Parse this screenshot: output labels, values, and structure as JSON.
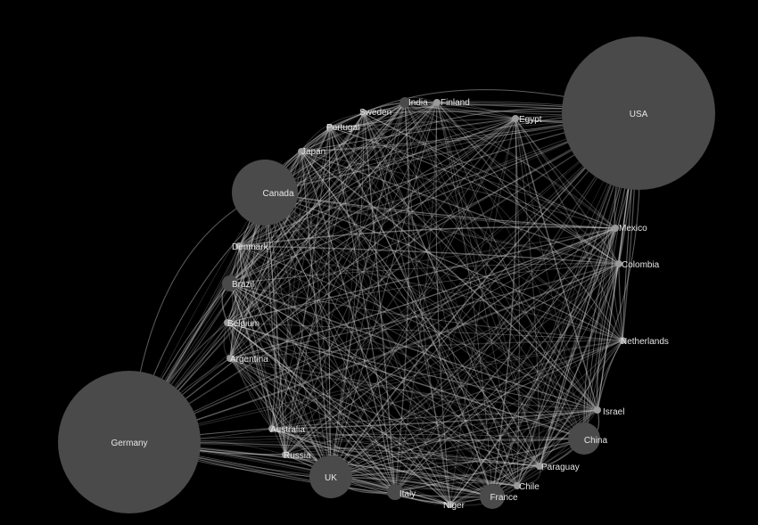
{
  "diagram": {
    "type": "network",
    "background": "#000000",
    "node_color": "#4a4a4a",
    "edge_color": "#d0d0d0",
    "label_color": "#e6e6e6",
    "nodes": [
      {
        "id": "USA",
        "size": "large"
      },
      {
        "id": "Germany",
        "size": "large"
      },
      {
        "id": "Canada",
        "size": "medium"
      },
      {
        "id": "UK",
        "size": "medium"
      },
      {
        "id": "China",
        "size": "small"
      },
      {
        "id": "France",
        "size": "small"
      },
      {
        "id": "Italy",
        "size": "small"
      },
      {
        "id": "Brazil",
        "size": "small"
      },
      {
        "id": "India",
        "size": "small"
      },
      {
        "id": "Finland",
        "size": "tiny"
      },
      {
        "id": "Egypt",
        "size": "tiny"
      },
      {
        "id": "Sweden",
        "size": "tiny"
      },
      {
        "id": "Portugal",
        "size": "tiny"
      },
      {
        "id": "Japan",
        "size": "tiny"
      },
      {
        "id": "Denmark",
        "size": "tiny"
      },
      {
        "id": "Belgium",
        "size": "tiny"
      },
      {
        "id": "Argentina",
        "size": "tiny"
      },
      {
        "id": "Australia",
        "size": "tiny"
      },
      {
        "id": "Russia",
        "size": "tiny"
      },
      {
        "id": "Niger",
        "size": "tiny"
      },
      {
        "id": "Chile",
        "size": "tiny"
      },
      {
        "id": "Paraguay",
        "size": "tiny"
      },
      {
        "id": "Israel",
        "size": "tiny"
      },
      {
        "id": "Netherlands",
        "size": "tiny"
      },
      {
        "id": "Colombia",
        "size": "tiny"
      },
      {
        "id": "Mexico",
        "size": "tiny"
      }
    ]
  }
}
